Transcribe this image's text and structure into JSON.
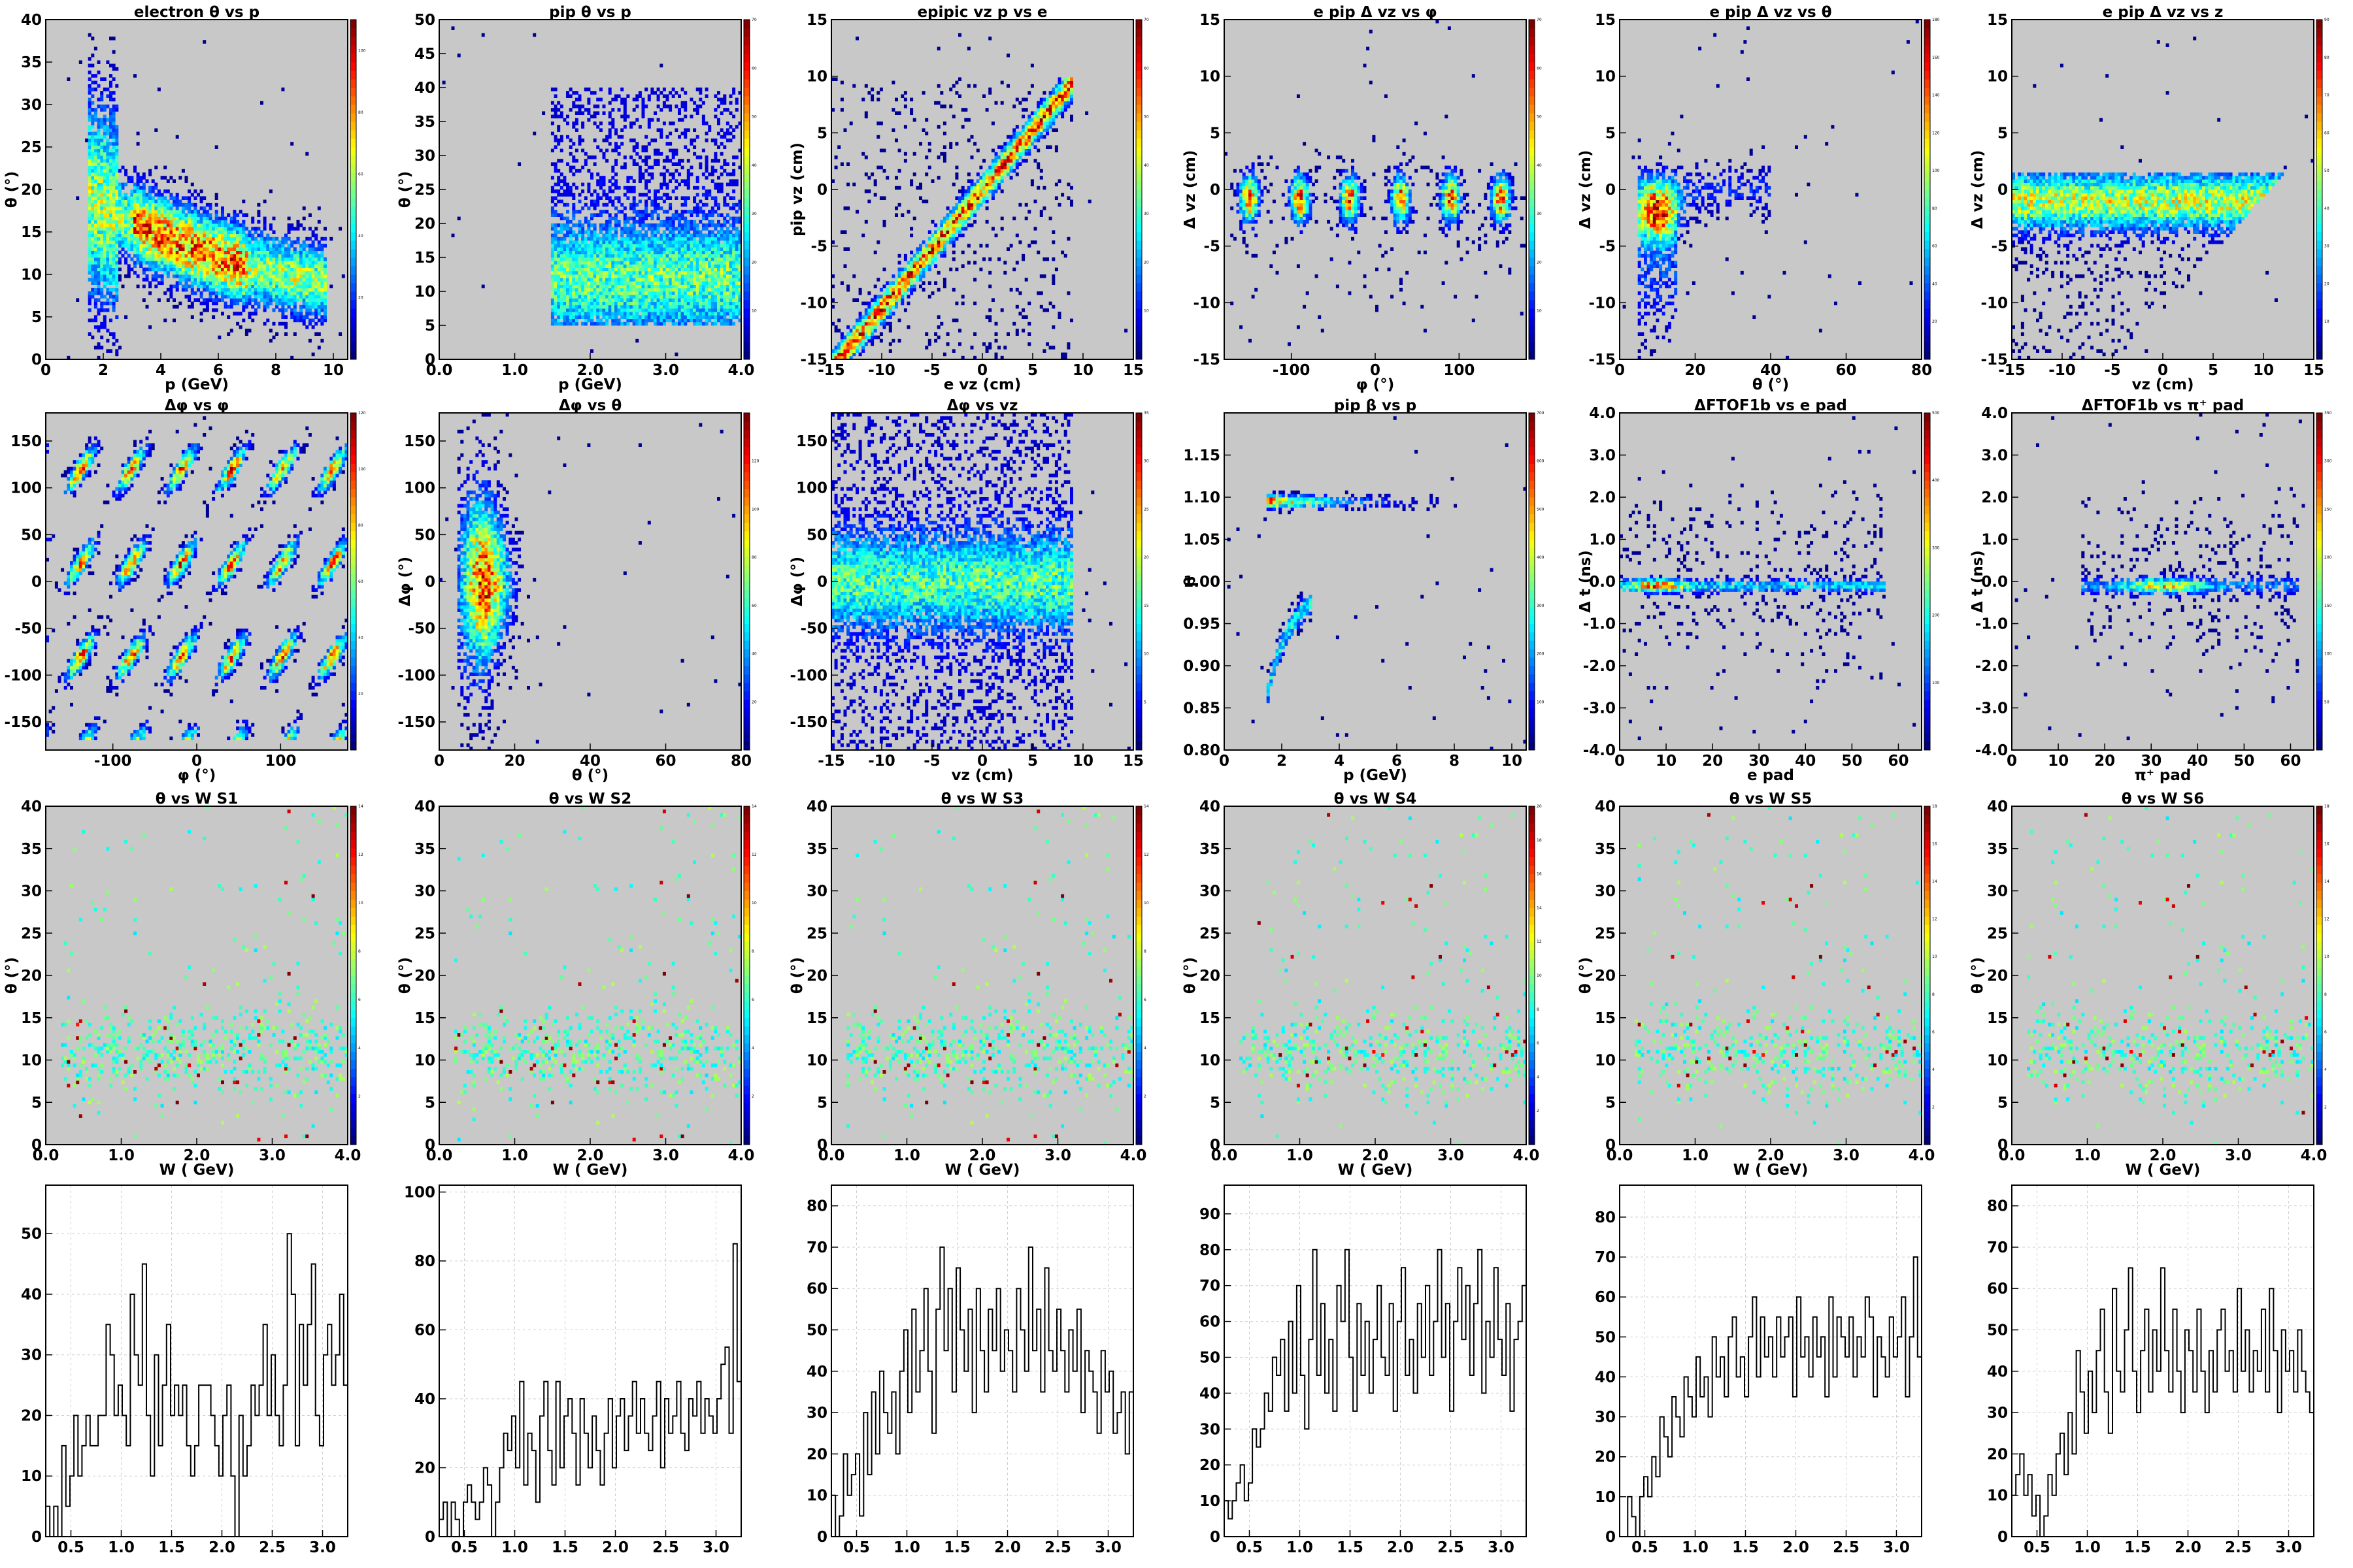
{
  "layout": {
    "row_labels": [
      "scatter",
      "scatter",
      "scatter",
      "histogram"
    ],
    "cmap": [
      "#00007f",
      "#0000ff",
      "#007fff",
      "#00ffff",
      "#7fff7f",
      "#ffff00",
      "#ff7f00",
      "#ff0000",
      "#7f0000"
    ],
    "plot_bg": "#c8c8c8",
    "hist_line": "#000000",
    "grid_color": "#cfcfcf"
  },
  "chart_data": [
    {
      "type": "heatmap",
      "title": "electron θ vs p",
      "xlabel": "p (GeV)",
      "ylabel": "θ (°)",
      "xlim": [
        0,
        10.5
      ],
      "ylim": [
        0,
        40
      ],
      "xticks": [
        0,
        2,
        4,
        6,
        8,
        10
      ],
      "yticks": [
        0,
        5,
        10,
        15,
        20,
        25,
        30,
        35,
        40
      ],
      "zmax": 110,
      "zticks": [
        20,
        40,
        60,
        80,
        100
      ],
      "pattern": "band-theta-p"
    },
    {
      "type": "heatmap",
      "title": "pip θ vs p",
      "xlabel": "p (GeV)",
      "ylabel": "θ (°)",
      "xlim": [
        0,
        4
      ],
      "ylim": [
        0,
        50
      ],
      "xticks": [
        "0.0",
        "1.0",
        "2.0",
        "3.0",
        "4.0"
      ],
      "yticks": [
        0,
        5,
        10,
        15,
        20,
        25,
        30,
        35,
        40,
        45,
        50
      ],
      "zmax": 70,
      "zticks": [
        10,
        20,
        30,
        40,
        50,
        60,
        70
      ],
      "pattern": "pip-theta"
    },
    {
      "type": "heatmap",
      "title": "epipic vz p vs e",
      "xlabel": "e vz (cm)",
      "ylabel": "pip vz (cm)",
      "xlim": [
        -15,
        15
      ],
      "ylim": [
        -15,
        15
      ],
      "xticks": [
        -15,
        -10,
        -5,
        0,
        5,
        10,
        15
      ],
      "yticks": [
        -15,
        -10,
        -5,
        0,
        5,
        10,
        15
      ],
      "zmax": 70,
      "zticks": [
        10,
        20,
        30,
        40,
        50,
        60,
        70
      ],
      "pattern": "diagonal"
    },
    {
      "type": "heatmap",
      "title": "e pip Δ vz vs φ",
      "xlabel": "φ (°)",
      "ylabel": "Δ vz (cm)",
      "xlim": [
        -180,
        180
      ],
      "ylim": [
        -15,
        15
      ],
      "xticks": [
        -100,
        0,
        100
      ],
      "yticks": [
        -15,
        -10,
        -5,
        0,
        5,
        10,
        15
      ],
      "zmax": 70,
      "zticks": [
        10,
        20,
        30,
        40,
        50,
        60,
        70
      ],
      "pattern": "dvz-phi"
    },
    {
      "type": "heatmap",
      "title": "e pip Δ vz vs θ",
      "xlabel": "θ (°)",
      "ylabel": "Δ vz (cm)",
      "xlim": [
        0,
        80
      ],
      "ylim": [
        -15,
        15
      ],
      "xticks": [
        0,
        20,
        40,
        60,
        80
      ],
      "yticks": [
        -15,
        -10,
        -5,
        0,
        5,
        10,
        15
      ],
      "zmax": 180,
      "zticks": [
        20,
        40,
        60,
        80,
        100,
        120,
        140,
        160,
        180
      ],
      "pattern": "dvz-theta"
    },
    {
      "type": "heatmap",
      "title": "e pip Δ vz vs z",
      "xlabel": "vz (cm)",
      "ylabel": "Δ vz (cm)",
      "xlim": [
        -15,
        15
      ],
      "ylim": [
        -15,
        15
      ],
      "xticks": [
        -15,
        -10,
        -5,
        0,
        5,
        10,
        15
      ],
      "yticks": [
        -15,
        -10,
        -5,
        0,
        5,
        10,
        15
      ],
      "zmax": 90,
      "zticks": [
        10,
        20,
        30,
        40,
        50,
        60,
        70,
        80,
        90
      ],
      "pattern": "dvz-z"
    },
    {
      "type": "heatmap",
      "title": "Δφ vs φ",
      "xlabel": "φ (°)",
      "ylabel": "",
      "xlim": [
        -180,
        180
      ],
      "ylim": [
        -180,
        180
      ],
      "xticks": [
        -100,
        0,
        100
      ],
      "yticks": [
        -150,
        -100,
        -50,
        0,
        50,
        100,
        150
      ],
      "zmax": 120,
      "zticks": [
        20,
        40,
        60,
        80,
        100,
        120
      ],
      "pattern": "dphi-phi"
    },
    {
      "type": "heatmap",
      "title": "Δφ vs θ",
      "xlabel": "θ (°)",
      "ylabel": "Δφ (°)",
      "xlim": [
        0,
        80
      ],
      "ylim": [
        -180,
        180
      ],
      "xticks": [
        0,
        20,
        40,
        60,
        80
      ],
      "yticks": [
        -150,
        -100,
        -50,
        0,
        50,
        100,
        150
      ],
      "zmax": 140,
      "zticks": [
        20,
        40,
        60,
        80,
        100,
        120
      ],
      "pattern": "dphi-theta"
    },
    {
      "type": "heatmap",
      "title": "Δφ vs vz",
      "xlabel": "vz (cm)",
      "ylabel": "Δφ (°)",
      "xlim": [
        -15,
        15
      ],
      "ylim": [
        -180,
        180
      ],
      "xticks": [
        -15,
        -10,
        -5,
        0,
        5,
        10,
        15
      ],
      "yticks": [
        -150,
        -100,
        -50,
        0,
        50,
        100,
        150
      ],
      "zmax": 35,
      "zticks": [
        5,
        10,
        15,
        20,
        25,
        30,
        35
      ],
      "pattern": "dphi-vz"
    },
    {
      "type": "heatmap",
      "title": "pip β vs p",
      "xlabel": "p (GeV)",
      "ylabel": "β",
      "xlim": [
        0,
        10.5
      ],
      "ylim": [
        0.8,
        1.2
      ],
      "xticks": [
        0,
        2,
        4,
        6,
        8,
        10
      ],
      "yticks": [
        "0.80",
        "0.85",
        "0.90",
        "0.95",
        "1.00",
        "1.05",
        "1.10",
        "1.15"
      ],
      "zmax": 700,
      "zticks": [
        100,
        200,
        300,
        400,
        500,
        600,
        700
      ],
      "pattern": "beta-p"
    },
    {
      "type": "heatmap",
      "title": "ΔFTOF1b vs e pad",
      "xlabel": "e pad",
      "ylabel": "Δ t (ns)",
      "xlim": [
        0,
        65
      ],
      "ylim": [
        -4,
        4
      ],
      "xticks": [
        0,
        10,
        20,
        30,
        40,
        50,
        60
      ],
      "yticks": [
        "-4.0",
        "-3.0",
        "-2.0",
        "-1.0",
        "0.0",
        "1.0",
        "2.0",
        "3.0",
        "4.0"
      ],
      "zmax": 500,
      "zticks": [
        100,
        200,
        300,
        400,
        500
      ],
      "pattern": "ftof-e"
    },
    {
      "type": "heatmap",
      "title": "ΔFTOF1b vs π⁺ pad",
      "xlabel": "π⁺ pad",
      "ylabel": "Δ t (ns)",
      "xlim": [
        0,
        65
      ],
      "ylim": [
        -4,
        4
      ],
      "xticks": [
        0,
        10,
        20,
        30,
        40,
        50,
        60
      ],
      "yticks": [
        "-4.0",
        "-3.0",
        "-2.0",
        "-1.0",
        "0.0",
        "1.0",
        "2.0",
        "3.0",
        "4.0"
      ],
      "zmax": 350,
      "zticks": [
        50,
        100,
        150,
        200,
        250,
        300,
        350
      ],
      "pattern": "ftof-pi"
    },
    {
      "type": "heatmap",
      "title": "θ vs W S1",
      "xlabel": "W ( GeV)",
      "ylabel": "θ (°)",
      "xlim": [
        0,
        4
      ],
      "ylim": [
        0,
        40
      ],
      "xticks": [
        "0.0",
        "1.0",
        "2.0",
        "3.0",
        "4.0"
      ],
      "yticks": [
        0,
        5,
        10,
        15,
        20,
        25,
        30,
        35,
        40
      ],
      "zmax": 14,
      "zticks": [
        2,
        4,
        6,
        8,
        10,
        12,
        14
      ],
      "pattern": "sparse"
    },
    {
      "type": "heatmap",
      "title": "θ vs W S2",
      "xlabel": "W ( GeV)",
      "ylabel": "θ (°)",
      "xlim": [
        0,
        4
      ],
      "ylim": [
        0,
        40
      ],
      "xticks": [
        "0.0",
        "1.0",
        "2.0",
        "3.0",
        "4.0"
      ],
      "yticks": [
        0,
        5,
        10,
        15,
        20,
        25,
        30,
        35,
        40
      ],
      "zmax": 14,
      "zticks": [
        2,
        4,
        6,
        8,
        10,
        12,
        14
      ],
      "pattern": "sparse"
    },
    {
      "type": "heatmap",
      "title": "θ vs W S3",
      "xlabel": "W ( GeV)",
      "ylabel": "θ (°)",
      "xlim": [
        0,
        4
      ],
      "ylim": [
        0,
        40
      ],
      "xticks": [
        "0.0",
        "1.0",
        "2.0",
        "3.0",
        "4.0"
      ],
      "yticks": [
        0,
        5,
        10,
        15,
        20,
        25,
        30,
        35,
        40
      ],
      "zmax": 14,
      "zticks": [
        2,
        4,
        6,
        8,
        10,
        12,
        14
      ],
      "pattern": "sparse"
    },
    {
      "type": "heatmap",
      "title": "θ vs W S4",
      "xlabel": "W ( GeV)",
      "ylabel": "θ (°)",
      "xlim": [
        0,
        4
      ],
      "ylim": [
        0,
        40
      ],
      "xticks": [
        "0.0",
        "1.0",
        "2.0",
        "3.0",
        "4.0"
      ],
      "yticks": [
        0,
        5,
        10,
        15,
        20,
        25,
        30,
        35,
        40
      ],
      "zmax": 20,
      "zticks": [
        2,
        4,
        6,
        8,
        10,
        12,
        14,
        16,
        18,
        20
      ],
      "pattern": "sparse"
    },
    {
      "type": "heatmap",
      "title": "θ vs W S5",
      "xlabel": "W ( GeV)",
      "ylabel": "θ (°)",
      "xlim": [
        0,
        4
      ],
      "ylim": [
        0,
        40
      ],
      "xticks": [
        "0.0",
        "1.0",
        "2.0",
        "3.0",
        "4.0"
      ],
      "yticks": [
        0,
        5,
        10,
        15,
        20,
        25,
        30,
        35,
        40
      ],
      "zmax": 18,
      "zticks": [
        2,
        4,
        6,
        8,
        10,
        12,
        14,
        16,
        18
      ],
      "pattern": "sparse"
    },
    {
      "type": "heatmap",
      "title": "θ vs W S6",
      "xlabel": "W ( GeV)",
      "ylabel": "θ (°)",
      "xlim": [
        0,
        4
      ],
      "ylim": [
        0,
        40
      ],
      "xticks": [
        "0.0",
        "1.0",
        "2.0",
        "3.0",
        "4.0"
      ],
      "yticks": [
        0,
        5,
        10,
        15,
        20,
        25,
        30,
        35,
        40
      ],
      "zmax": 18,
      "zticks": [
        2,
        4,
        6,
        8,
        10,
        12,
        14,
        16,
        18
      ],
      "pattern": "sparse"
    },
    {
      "type": "histogram",
      "title": "",
      "xlabel": "",
      "ylabel": "",
      "xlim": [
        0.25,
        3.25
      ],
      "ylim": [
        0,
        58
      ],
      "xticks": [
        "0.5",
        "1.0",
        "1.5",
        "2.0",
        "2.5",
        "3.0"
      ],
      "yticks": [
        0,
        10,
        20,
        30,
        40,
        50
      ],
      "values": [
        5,
        0,
        5,
        0,
        15,
        5,
        10,
        20,
        10,
        15,
        20,
        15,
        15,
        20,
        20,
        35,
        30,
        20,
        25,
        20,
        15,
        40,
        30,
        25,
        45,
        20,
        10,
        30,
        15,
        25,
        35,
        20,
        25,
        20,
        25,
        15,
        10,
        15,
        25,
        25,
        25,
        20,
        15,
        10,
        20,
        25,
        10,
        0,
        20,
        10,
        15,
        25,
        20,
        25,
        35,
        20,
        30,
        20,
        15,
        25,
        50,
        40,
        15,
        35,
        25,
        35,
        45,
        20,
        15,
        30,
        35,
        25,
        30,
        40,
        25
      ]
    },
    {
      "type": "histogram",
      "title": "",
      "xlabel": "",
      "ylabel": "",
      "xlim": [
        0.25,
        3.25
      ],
      "ylim": [
        0,
        102
      ],
      "xticks": [
        "0.5",
        "1.0",
        "1.5",
        "2.0",
        "2.5",
        "3.0"
      ],
      "yticks": [
        0,
        20,
        40,
        60,
        80,
        100
      ],
      "values": [
        5,
        10,
        0,
        10,
        5,
        0,
        10,
        15,
        10,
        5,
        10,
        20,
        15,
        0,
        10,
        20,
        30,
        25,
        35,
        20,
        45,
        15,
        30,
        25,
        10,
        35,
        45,
        25,
        15,
        45,
        20,
        35,
        40,
        30,
        15,
        40,
        30,
        20,
        35,
        25,
        15,
        30,
        40,
        20,
        35,
        40,
        25,
        35,
        45,
        30,
        40,
        30,
        25,
        35,
        45,
        20,
        40,
        30,
        35,
        45,
        30,
        25,
        40,
        35,
        45,
        30,
        40,
        35,
        30,
        40,
        50,
        55,
        30,
        85,
        45
      ]
    },
    {
      "type": "histogram",
      "title": "",
      "xlabel": "",
      "ylabel": "",
      "xlim": [
        0.25,
        3.25
      ],
      "ylim": [
        0,
        85
      ],
      "xticks": [
        "0.5",
        "1.0",
        "1.5",
        "2.0",
        "2.5",
        "3.0"
      ],
      "yticks": [
        0,
        10,
        20,
        30,
        40,
        50,
        60,
        70,
        80
      ],
      "values": [
        10,
        0,
        5,
        20,
        10,
        15,
        20,
        5,
        30,
        15,
        35,
        20,
        40,
        30,
        25,
        35,
        20,
        40,
        50,
        30,
        55,
        35,
        45,
        60,
        40,
        25,
        55,
        70,
        45,
        60,
        35,
        65,
        50,
        40,
        55,
        30,
        60,
        45,
        35,
        55,
        45,
        60,
        40,
        50,
        45,
        35,
        60,
        50,
        40,
        70,
        45,
        55,
        35,
        65,
        45,
        40,
        55,
        45,
        35,
        50,
        40,
        55,
        30,
        45,
        40,
        35,
        25,
        45,
        35,
        40,
        25,
        30,
        35,
        20,
        35
      ]
    },
    {
      "type": "histogram",
      "title": "",
      "xlabel": "",
      "ylabel": "",
      "xlim": [
        0.25,
        3.25
      ],
      "ylim": [
        0,
        98
      ],
      "xticks": [
        "0.5",
        "1.0",
        "1.5",
        "2.0",
        "2.5",
        "3.0"
      ],
      "yticks": [
        0,
        10,
        20,
        30,
        40,
        50,
        60,
        70,
        80,
        90
      ],
      "values": [
        10,
        5,
        10,
        15,
        20,
        10,
        15,
        30,
        25,
        30,
        40,
        35,
        50,
        45,
        55,
        35,
        60,
        40,
        70,
        45,
        30,
        55,
        80,
        45,
        65,
        40,
        55,
        35,
        70,
        60,
        80,
        50,
        35,
        65,
        45,
        60,
        40,
        55,
        70,
        50,
        45,
        65,
        35,
        60,
        75,
        45,
        55,
        40,
        65,
        50,
        70,
        45,
        60,
        80,
        50,
        65,
        35,
        60,
        75,
        55,
        70,
        45,
        65,
        80,
        40,
        60,
        50,
        75,
        55,
        45,
        65,
        35,
        55,
        60,
        70
      ]
    },
    {
      "type": "histogram",
      "title": "",
      "xlabel": "",
      "ylabel": "",
      "xlim": [
        0.25,
        3.25
      ],
      "ylim": [
        0,
        88
      ],
      "xticks": [
        "0.5",
        "1.0",
        "1.5",
        "2.0",
        "2.5",
        "3.0"
      ],
      "yticks": [
        0,
        10,
        20,
        30,
        40,
        50,
        60,
        70,
        80
      ],
      "values": [
        0,
        0,
        10,
        5,
        0,
        10,
        15,
        10,
        20,
        15,
        30,
        25,
        20,
        35,
        30,
        25,
        40,
        35,
        30,
        45,
        35,
        40,
        30,
        50,
        40,
        45,
        35,
        50,
        55,
        40,
        45,
        35,
        50,
        60,
        40,
        55,
        45,
        50,
        40,
        55,
        45,
        50,
        55,
        35,
        60,
        45,
        50,
        40,
        55,
        45,
        50,
        35,
        60,
        40,
        55,
        50,
        45,
        55,
        40,
        50,
        45,
        60,
        55,
        35,
        50,
        45,
        40,
        55,
        45,
        50,
        60,
        35,
        50,
        70,
        45
      ]
    },
    {
      "type": "histogram",
      "title": "",
      "xlabel": "",
      "ylabel": "",
      "xlim": [
        0.25,
        3.25
      ],
      "ylim": [
        0,
        85
      ],
      "xticks": [
        "0.5",
        "1.0",
        "1.5",
        "2.0",
        "2.5",
        "3.0"
      ],
      "yticks": [
        0,
        10,
        20,
        30,
        40,
        50,
        60,
        70,
        80
      ],
      "values": [
        10,
        15,
        20,
        10,
        15,
        5,
        10,
        0,
        5,
        15,
        10,
        20,
        25,
        15,
        30,
        20,
        45,
        35,
        25,
        40,
        30,
        45,
        55,
        35,
        25,
        60,
        40,
        35,
        50,
        65,
        40,
        30,
        45,
        55,
        35,
        50,
        40,
        65,
        45,
        35,
        55,
        40,
        30,
        50,
        45,
        35,
        55,
        40,
        30,
        45,
        35,
        50,
        55,
        40,
        45,
        35,
        60,
        40,
        50,
        35,
        45,
        40,
        55,
        35,
        60,
        45,
        30,
        50,
        40,
        45,
        35,
        50,
        40,
        35,
        30
      ]
    }
  ]
}
